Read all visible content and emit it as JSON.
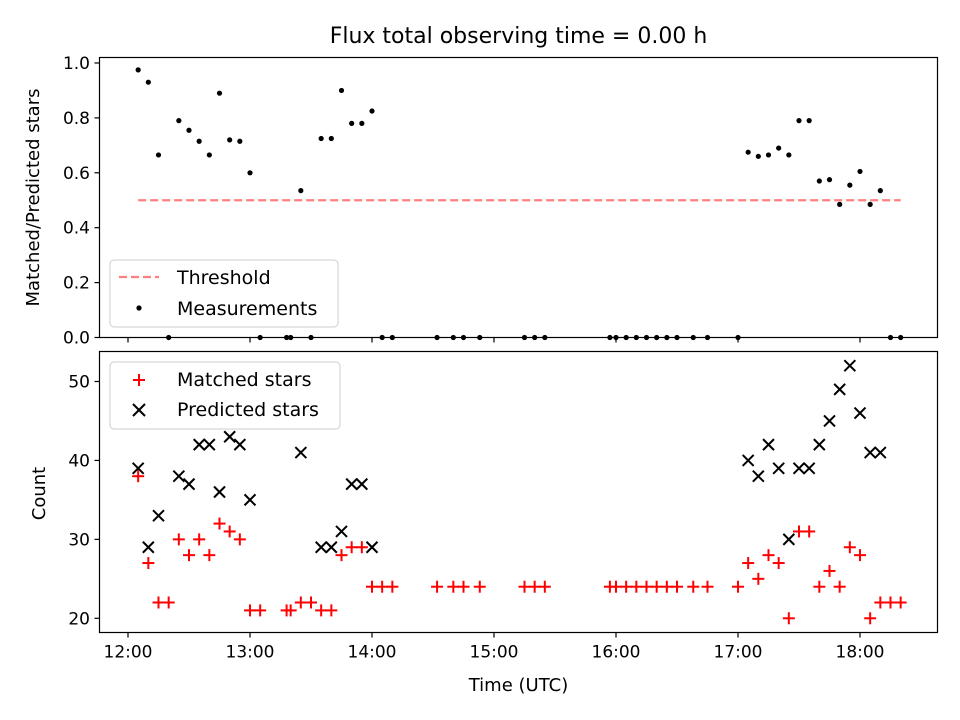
{
  "chart_data": {
    "title": "Flux total observing time = 0.00 h",
    "xlabel": "Time (UTC)",
    "x_ticks": [
      "12:00",
      "13:00",
      "14:00",
      "15:00",
      "16:00",
      "17:00",
      "18:00"
    ],
    "panels": [
      {
        "type": "scatter",
        "ylabel": "Matched/Predicted stars",
        "ylim": [
          0,
          1.02
        ],
        "y_ticks": [
          "0.0",
          "0.2",
          "0.4",
          "0.6",
          "0.8",
          "1.0"
        ],
        "legend_position": "lower-left",
        "legend": [
          "Threshold",
          "Measurements"
        ],
        "threshold": {
          "name": "Threshold",
          "x": [
            "12:05",
            "18:20"
          ],
          "value": 0.5,
          "color": "#ff7f7f"
        },
        "series": [
          {
            "name": "Measurements",
            "color": "#000000",
            "x": [
              "12:05",
              "12:10",
              "12:15",
              "12:20",
              "12:25",
              "12:30",
              "12:35",
              "12:40",
              "12:45",
              "12:50",
              "12:55",
              "13:00",
              "13:05",
              "13:18",
              "13:20",
              "13:25",
              "13:30",
              "13:35",
              "13:40",
              "13:45",
              "13:50",
              "13:55",
              "14:00",
              "14:05",
              "14:10",
              "14:32",
              "14:40",
              "14:45",
              "14:53",
              "15:15",
              "15:20",
              "15:25",
              "15:57",
              "16:00",
              "16:05",
              "16:10",
              "16:15",
              "16:20",
              "16:25",
              "16:30",
              "16:38",
              "16:45",
              "17:00",
              "17:05",
              "17:10",
              "17:15",
              "17:20",
              "17:25",
              "17:30",
              "17:35",
              "17:40",
              "17:45",
              "17:50",
              "17:55",
              "18:00",
              "18:05",
              "18:10",
              "18:15",
              "18:20"
            ],
            "y": [
              0.975,
              0.93,
              0.665,
              0,
              0.79,
              0.755,
              0.715,
              0.665,
              0.89,
              0.72,
              0.715,
              0.6,
              0,
              0,
              0,
              0.535,
              0,
              0.725,
              0.725,
              0.9,
              0.78,
              0.78,
              0.825,
              0,
              0,
              0,
              0,
              0,
              0,
              0,
              0,
              0,
              0,
              0,
              0,
              0,
              0,
              0,
              0,
              0,
              0,
              0,
              0,
              0.675,
              0.66,
              0.665,
              0.69,
              0.665,
              0.79,
              0.79,
              0.57,
              0.575,
              0.485,
              0.555,
              0.605,
              0.485,
              0.535,
              0,
              0
            ]
          }
        ]
      },
      {
        "type": "scatter",
        "ylabel": "Count",
        "ylim": [
          18.2,
          53.8
        ],
        "y_ticks": [
          "20",
          "30",
          "40",
          "50"
        ],
        "legend_position": "upper-left",
        "legend": [
          "Matched stars",
          "Predicted stars"
        ],
        "series": [
          {
            "name": "Matched stars",
            "marker": "plus",
            "color": "#ff0000",
            "x": [
              "12:05",
              "12:10",
              "12:15",
              "12:20",
              "12:25",
              "12:30",
              "12:35",
              "12:40",
              "12:45",
              "12:50",
              "12:55",
              "13:00",
              "13:05",
              "13:18",
              "13:20",
              "13:25",
              "13:30",
              "13:35",
              "13:40",
              "13:45",
              "13:50",
              "13:55",
              "14:00",
              "14:05",
              "14:10",
              "14:32",
              "14:40",
              "14:45",
              "14:53",
              "15:15",
              "15:20",
              "15:25",
              "15:57",
              "16:00",
              "16:05",
              "16:10",
              "16:15",
              "16:20",
              "16:25",
              "16:30",
              "16:38",
              "16:45",
              "17:00",
              "17:05",
              "17:10",
              "17:15",
              "17:20",
              "17:25",
              "17:30",
              "17:35",
              "17:40",
              "17:45",
              "17:50",
              "17:55",
              "18:00",
              "18:05",
              "18:10",
              "18:15",
              "18:20"
            ],
            "y": [
              38,
              27,
              22,
              22,
              30,
              28,
              30,
              28,
              32,
              31,
              30,
              21,
              21,
              21,
              21,
              22,
              22,
              21,
              21,
              28,
              29,
              29,
              24,
              24,
              24,
              24,
              24,
              24,
              24,
              24,
              24,
              24,
              24,
              24,
              24,
              24,
              24,
              24,
              24,
              24,
              24,
              24,
              24,
              27,
              25,
              28,
              27,
              20,
              31,
              31,
              24,
              26,
              24,
              29,
              28,
              20,
              22,
              22,
              22
            ]
          },
          {
            "name": "Predicted stars",
            "marker": "x",
            "color": "#000000",
            "x": [
              "12:05",
              "12:10",
              "12:15",
              "12:25",
              "12:30",
              "12:35",
              "12:40",
              "12:45",
              "12:50",
              "12:55",
              "13:00",
              "13:25",
              "13:35",
              "13:40",
              "13:45",
              "13:50",
              "13:55",
              "14:00",
              "17:05",
              "17:10",
              "17:15",
              "17:20",
              "17:25",
              "17:30",
              "17:35",
              "17:40",
              "17:45",
              "17:50",
              "17:55",
              "18:00",
              "18:05",
              "18:10"
            ],
            "y": [
              39,
              29,
              33,
              38,
              37,
              42,
              42,
              36,
              43,
              42,
              35,
              41,
              29,
              29,
              31,
              37,
              37,
              29,
              40,
              38,
              42,
              39,
              30,
              39,
              39,
              42,
              45,
              49,
              52,
              46,
              41,
              41
            ]
          }
        ]
      }
    ]
  }
}
